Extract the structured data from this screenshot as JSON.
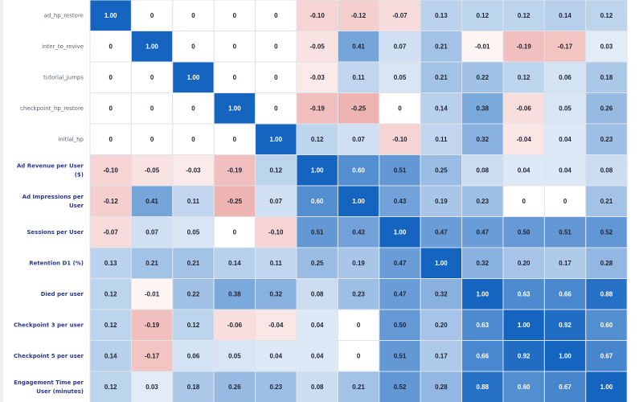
{
  "chart_data": {
    "type": "heatmap",
    "title": "",
    "xlabel": "",
    "ylabel": "",
    "value_range": [
      -1,
      1
    ],
    "color_negative": "#d9534f",
    "color_positive": "#1565c0",
    "color_zero": "#ffffff",
    "rows": [
      {
        "label": "ad_hp_restore",
        "kind": "feature"
      },
      {
        "label": "inter_to_revive",
        "kind": "feature"
      },
      {
        "label": "tutorial_jumps",
        "kind": "feature"
      },
      {
        "label": "checkpoint_hp_restore",
        "kind": "feature"
      },
      {
        "label": "initial_hp",
        "kind": "feature"
      },
      {
        "label": "Ad Revenue per User ($)",
        "kind": "metric",
        "lines": [
          "Ad Revenue per User",
          "($)"
        ]
      },
      {
        "label": "Ad Impressions per User",
        "kind": "metric",
        "lines": [
          "Ad Impressions per",
          "User"
        ]
      },
      {
        "label": "Sessions per User",
        "kind": "metric",
        "lines": [
          "Sessions per User"
        ]
      },
      {
        "label": "Retention D1 (%)",
        "kind": "metric",
        "lines": [
          "Retention D1 (%)"
        ]
      },
      {
        "label": "Died per user",
        "kind": "metric",
        "lines": [
          "Died per user"
        ]
      },
      {
        "label": "Checkpoint 3 per user",
        "kind": "metric",
        "lines": [
          "Checkpoint 3 per user"
        ]
      },
      {
        "label": "Checkpoint 5 per user",
        "kind": "metric",
        "lines": [
          "Checkpoint 5 per user"
        ]
      },
      {
        "label": "Engagement Time per User (minutes)",
        "kind": "metric",
        "lines": [
          "Engagement Time per",
          "User (minutes)"
        ]
      }
    ],
    "values": [
      [
        "1.00",
        "0",
        "0",
        "0",
        "0",
        "-0.10",
        "-0.12",
        "-0.07",
        "0.13",
        "0.12",
        "0.12",
        "0.14",
        "0.12"
      ],
      [
        "0",
        "1.00",
        "0",
        "0",
        "0",
        "-0.05",
        "0.41",
        "0.07",
        "0.21",
        "-0.01",
        "-0.19",
        "-0.17",
        "0.03"
      ],
      [
        "0",
        "0",
        "1.00",
        "0",
        "0",
        "-0.03",
        "0.11",
        "0.05",
        "0.21",
        "0.22",
        "0.12",
        "0.06",
        "0.18"
      ],
      [
        "0",
        "0",
        "0",
        "1.00",
        "0",
        "-0.19",
        "-0.25",
        "0",
        "0.14",
        "0.38",
        "-0.06",
        "0.05",
        "0.26"
      ],
      [
        "0",
        "0",
        "0",
        "0",
        "1.00",
        "0.12",
        "0.07",
        "-0.10",
        "0.11",
        "0.32",
        "-0.04",
        "0.04",
        "0.23"
      ],
      [
        "-0.10",
        "-0.05",
        "-0.03",
        "-0.19",
        "0.12",
        "1.00",
        "0.60",
        "0.51",
        "0.25",
        "0.08",
        "0.04",
        "0.04",
        "0.08"
      ],
      [
        "-0.12",
        "0.41",
        "0.11",
        "-0.25",
        "0.07",
        "0.60",
        "1.00",
        "0.43",
        "0.19",
        "0.23",
        "0",
        "0",
        "0.21"
      ],
      [
        "-0.07",
        "0.07",
        "0.05",
        "0",
        "-0.10",
        "0.51",
        "0.43",
        "1.00",
        "0.47",
        "0.47",
        "0.50",
        "0.51",
        "0.52"
      ],
      [
        "0.13",
        "0.21",
        "0.21",
        "0.14",
        "0.11",
        "0.25",
        "0.19",
        "0.47",
        "1.00",
        "0.32",
        "0.20",
        "0.17",
        "0.28"
      ],
      [
        "0.12",
        "-0.01",
        "0.22",
        "0.38",
        "0.32",
        "0.08",
        "0.23",
        "0.47",
        "0.32",
        "1.00",
        "0.63",
        "0.66",
        "0.88"
      ],
      [
        "0.12",
        "-0.19",
        "0.12",
        "-0.06",
        "-0.04",
        "0.04",
        "0",
        "0.50",
        "0.20",
        "0.63",
        "1.00",
        "0.92",
        "0.60"
      ],
      [
        "0.14",
        "-0.17",
        "0.06",
        "0.05",
        "0.04",
        "0.04",
        "0",
        "0.51",
        "0.17",
        "0.66",
        "0.92",
        "1.00",
        "0.67"
      ],
      [
        "0.12",
        "0.03",
        "0.18",
        "0.26",
        "0.23",
        "0.08",
        "0.21",
        "0.52",
        "0.28",
        "0.88",
        "0.60",
        "0.67",
        "1.00"
      ]
    ]
  }
}
